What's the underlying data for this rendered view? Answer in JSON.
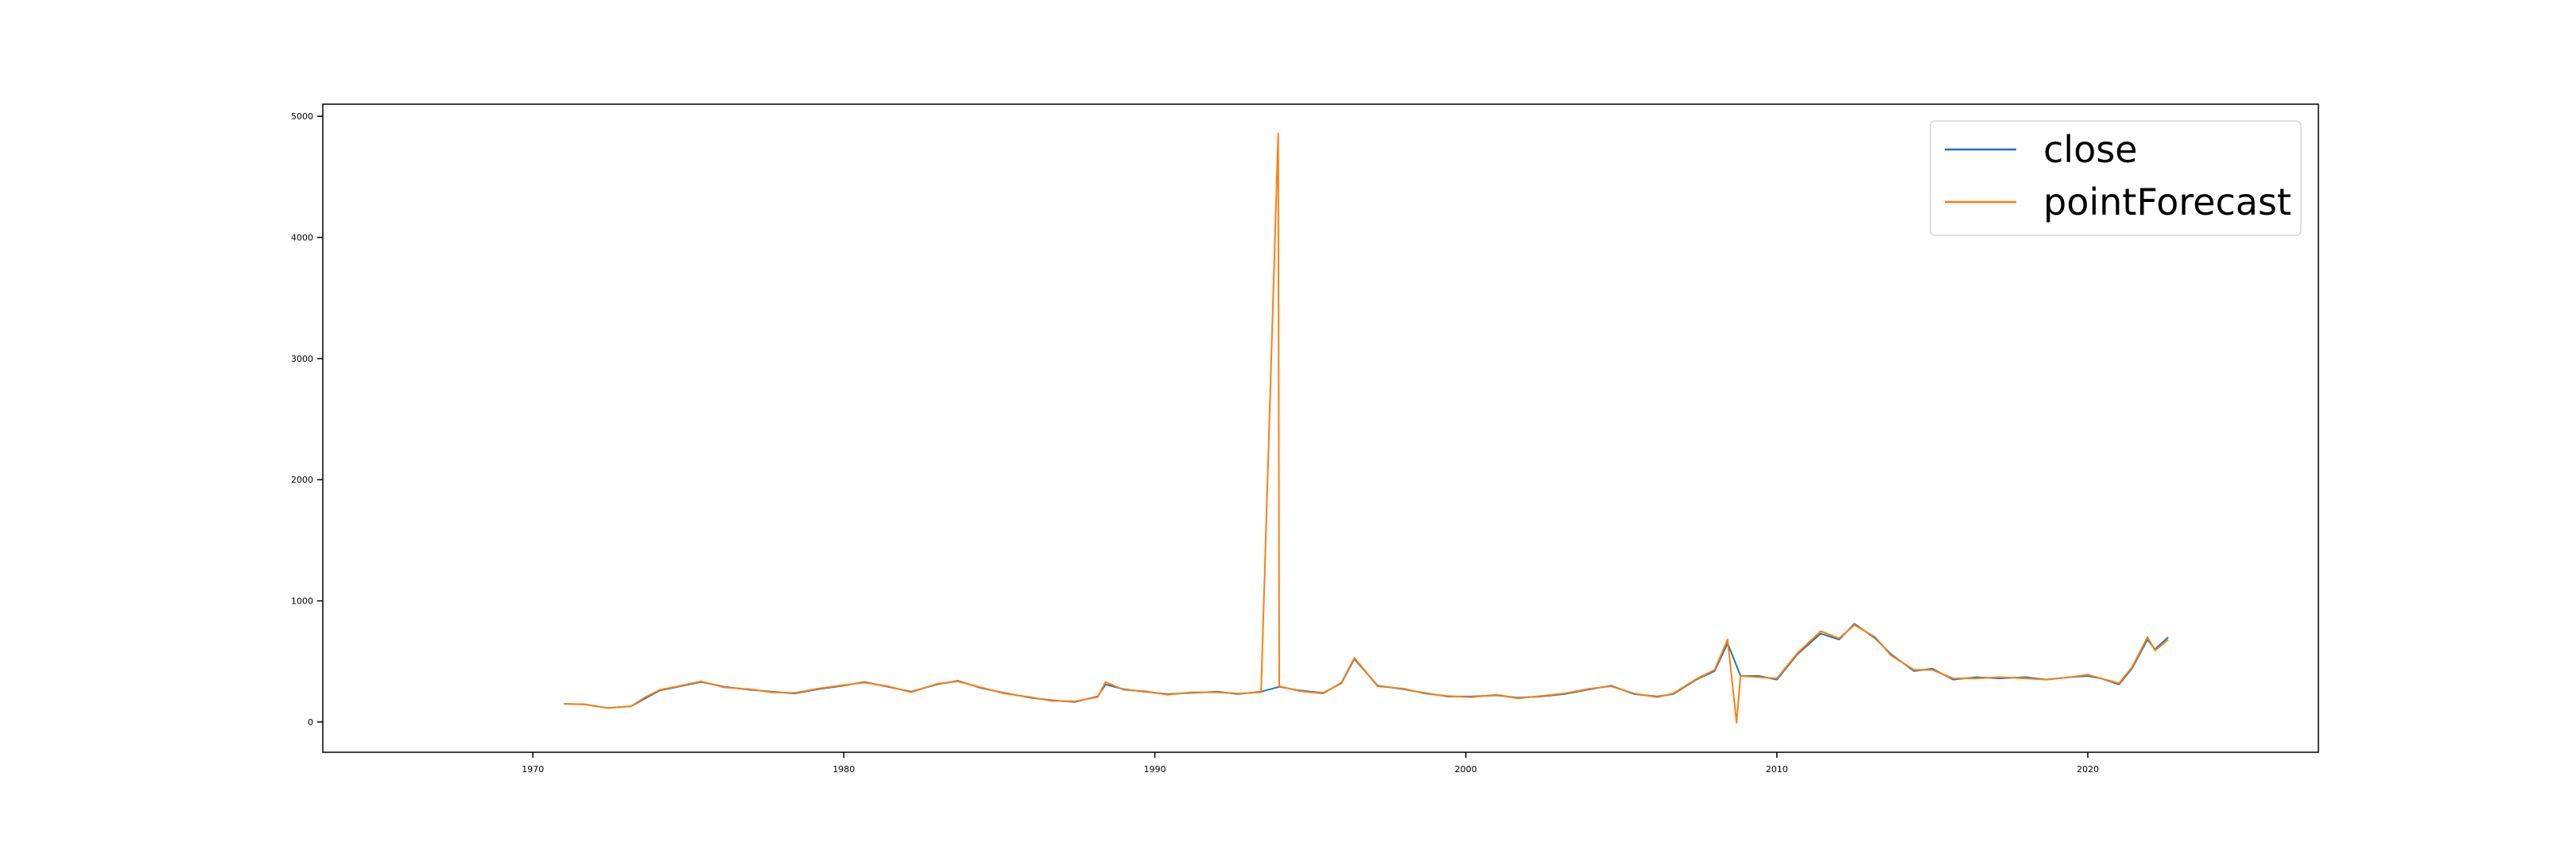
{
  "chart_data": {
    "type": "line",
    "title": "",
    "xlabel": "",
    "ylabel": "",
    "x_axis_type": "date",
    "xlim": [
      "1963-04-01",
      "2027-06-01"
    ],
    "ylim": [
      -250,
      5100
    ],
    "x_ticks": [
      {
        "value": "1970-01-01",
        "label": "1970"
      },
      {
        "value": "1980-01-01",
        "label": "1980"
      },
      {
        "value": "1990-01-01",
        "label": "1990"
      },
      {
        "value": "2000-01-01",
        "label": "2000"
      },
      {
        "value": "2010-01-01",
        "label": "2010"
      },
      {
        "value": "2020-01-01",
        "label": "2020"
      }
    ],
    "y_ticks": [
      0,
      1000,
      2000,
      3000,
      4000,
      5000
    ],
    "grid": false,
    "legend_position": "top-right",
    "series": [
      {
        "name": "close",
        "color": "#1f77b4",
        "x": [
          "1971-01-01",
          "1971-09-01",
          "1972-06-01",
          "1973-03-01",
          "1973-08-01",
          "1974-02-01",
          "1974-09-01",
          "1975-06-01",
          "1976-03-01",
          "1977-01-01",
          "1977-09-01",
          "1978-06-01",
          "1979-03-01",
          "1980-01-01",
          "1980-09-01",
          "1981-06-01",
          "1982-03-01",
          "1983-01-01",
          "1983-09-01",
          "1984-06-01",
          "1985-03-01",
          "1986-01-01",
          "1986-09-01",
          "1987-06-01",
          "1988-03-01",
          "1988-06-01",
          "1989-01-01",
          "1989-09-01",
          "1990-06-01",
          "1991-03-01",
          "1992-01-01",
          "1992-09-01",
          "1993-06-01",
          "1994-01-01",
          "1994-09-01",
          "1995-06-01",
          "1996-01-01",
          "1996-06-01",
          "1997-03-01",
          "1998-01-01",
          "1998-09-01",
          "1999-06-01",
          "2000-03-01",
          "2001-01-01",
          "2001-09-01",
          "2002-06-01",
          "2003-03-01",
          "2004-01-01",
          "2004-09-01",
          "2005-06-01",
          "2006-03-01",
          "2006-09-01",
          "2007-06-01",
          "2008-01-01",
          "2008-06-01",
          "2008-11-01",
          "2009-06-01",
          "2010-01-01",
          "2010-09-01",
          "2011-06-01",
          "2012-01-01",
          "2012-07-01",
          "2013-03-01",
          "2013-09-01",
          "2014-06-01",
          "2015-01-01",
          "2015-09-01",
          "2016-06-01",
          "2017-03-01",
          "2018-01-01",
          "2018-09-01",
          "2019-06-01",
          "2020-01-01",
          "2020-06-01",
          "2021-01-01",
          "2021-06-01",
          "2021-12-01",
          "2022-03-01",
          "2022-08-01"
        ],
        "y": [
          150,
          145,
          115,
          130,
          190,
          260,
          290,
          330,
          290,
          265,
          250,
          235,
          270,
          300,
          330,
          290,
          250,
          310,
          340,
          280,
          240,
          200,
          180,
          165,
          210,
          310,
          270,
          250,
          230,
          240,
          250,
          230,
          250,
          290,
          260,
          240,
          320,
          520,
          300,
          270,
          240,
          210,
          210,
          220,
          200,
          210,
          230,
          270,
          300,
          230,
          210,
          230,
          350,
          420,
          650,
          380,
          380,
          350,
          560,
          730,
          680,
          810,
          690,
          560,
          420,
          440,
          350,
          370,
          360,
          370,
          350,
          370,
          380,
          360,
          310,
          440,
          680,
          600,
          700
        ]
      },
      {
        "name": "pointForecast",
        "color": "#ff7f0e",
        "x": [
          "1971-01-01",
          "1971-09-01",
          "1972-06-01",
          "1973-03-01",
          "1973-08-01",
          "1974-02-01",
          "1974-09-01",
          "1975-06-01",
          "1976-03-01",
          "1977-01-01",
          "1977-09-01",
          "1978-06-01",
          "1979-03-01",
          "1980-01-01",
          "1980-09-01",
          "1981-06-01",
          "1982-03-01",
          "1983-01-01",
          "1983-09-01",
          "1984-06-01",
          "1985-03-01",
          "1986-01-01",
          "1986-09-01",
          "1987-06-01",
          "1988-03-01",
          "1988-06-01",
          "1989-01-01",
          "1989-09-01",
          "1990-06-01",
          "1991-03-01",
          "1992-01-01",
          "1992-09-01",
          "1993-06-01",
          "1993-12-20",
          "1994-01-01",
          "1994-09-01",
          "1995-06-01",
          "1996-01-01",
          "1996-06-01",
          "1997-03-01",
          "1998-01-01",
          "1998-09-01",
          "1999-06-01",
          "2000-03-01",
          "2001-01-01",
          "2001-09-01",
          "2002-06-01",
          "2003-03-01",
          "2004-01-01",
          "2004-09-01",
          "2005-06-01",
          "2006-03-01",
          "2006-09-01",
          "2007-06-01",
          "2008-01-01",
          "2008-06-01",
          "2008-09-15",
          "2008-11-01",
          "2009-06-01",
          "2010-01-01",
          "2010-09-01",
          "2011-06-01",
          "2012-01-01",
          "2012-07-01",
          "2013-03-01",
          "2013-09-01",
          "2014-06-01",
          "2015-01-01",
          "2015-09-01",
          "2016-06-01",
          "2017-03-01",
          "2018-01-01",
          "2018-09-01",
          "2019-06-01",
          "2020-01-01",
          "2020-06-01",
          "2021-01-01",
          "2021-06-01",
          "2021-12-01",
          "2022-03-01",
          "2022-08-01"
        ],
        "y": [
          150,
          145,
          115,
          130,
          200,
          265,
          295,
          335,
          285,
          270,
          245,
          240,
          275,
          305,
          325,
          295,
          245,
          315,
          335,
          285,
          235,
          205,
          175,
          170,
          205,
          330,
          265,
          255,
          225,
          245,
          245,
          235,
          245,
          4860,
          295,
          255,
          235,
          325,
          530,
          295,
          275,
          235,
          215,
          205,
          225,
          195,
          215,
          235,
          275,
          295,
          235,
          205,
          235,
          355,
          430,
          680,
          -5,
          380,
          370,
          360,
          570,
          750,
          690,
          800,
          700,
          550,
          430,
          430,
          360,
          360,
          370,
          360,
          350,
          370,
          390,
          360,
          320,
          450,
          700,
          590,
          680
        ]
      }
    ]
  }
}
